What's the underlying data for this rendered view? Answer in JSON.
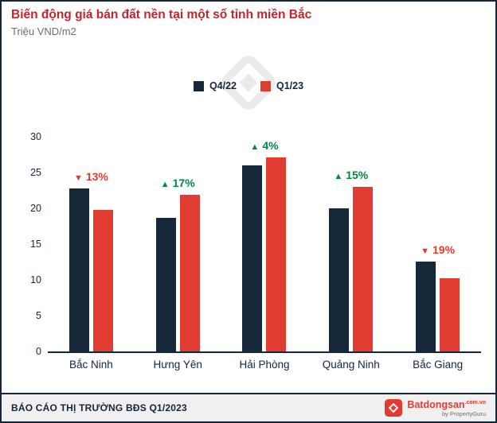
{
  "header": {
    "title": "Biến động giá bán đất nền tại một số tỉnh miền Bắc",
    "subtitle": "Triệu VND/m2"
  },
  "colors": {
    "navy": "#14263a",
    "red": "#e03c31",
    "green": "#008740",
    "title_red": "#c8232c",
    "footer_bg": "#f0f0f1",
    "subtitle_gray": "#6d6e71",
    "watermark_gray": "#ebebec"
  },
  "icons": {
    "watermark": "batdongsan-diamond-watermark-icon",
    "brand": "house-diamond-logo-icon",
    "up": "triangle-up-icon",
    "down": "triangle-down-icon"
  },
  "chart_data": {
    "type": "bar",
    "title": "Biến động giá bán đất nền tại một số tỉnh miền Bắc",
    "ylabel": "Triệu VND/m2",
    "xlabel": "",
    "ylim": [
      0,
      30
    ],
    "yticks": [
      0,
      5,
      10,
      15,
      20,
      25,
      30
    ],
    "grid": false,
    "legend_position": "top-center",
    "categories": [
      "Bắc Ninh",
      "Hưng Yên",
      "Hải Phòng",
      "Quảng Ninh",
      "Bắc Giang"
    ],
    "series": [
      {
        "name": "Q4/22",
        "color": "#15293b",
        "values": [
          22.8,
          18.7,
          26.0,
          20.0,
          12.6
        ]
      },
      {
        "name": "Q1/23",
        "color": "#e03c31",
        "values": [
          19.8,
          21.9,
          27.1,
          23.0,
          10.2
        ]
      }
    ],
    "annotations": [
      {
        "category": "Bắc Ninh",
        "direction": "down",
        "label": "13%",
        "color": "#e03c31"
      },
      {
        "category": "Hưng Yên",
        "direction": "up",
        "label": "17%",
        "color": "#008740"
      },
      {
        "category": "Hải Phòng",
        "direction": "up",
        "label": "4%",
        "color": "#008740"
      },
      {
        "category": "Quảng Ninh",
        "direction": "up",
        "label": "15%",
        "color": "#008740"
      },
      {
        "category": "Bắc Giang",
        "direction": "down",
        "label": "19%",
        "color": "#e03c31"
      }
    ]
  },
  "footer": {
    "report_label": "BÁO CÁO THỊ TRƯỜNG BĐS Q1/2023",
    "brand": {
      "name": "Batdongsan",
      "suffix": ".com.vn",
      "tagline": "by PropertyGuru"
    }
  }
}
